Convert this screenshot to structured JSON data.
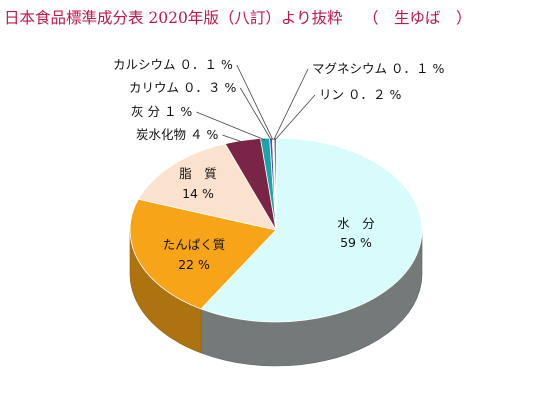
{
  "title": "日本食品標準成分表 2020年版（八訂）より抜粋　 （　生ゆば　）",
  "colors": {
    "title": "#c0184a",
    "water": "#d8fbfc",
    "protein": "#f7a418",
    "fat": "#fbe2cf",
    "carb": "#7a2546",
    "ash": "#1aa6a6",
    "k": "#4a4ac8",
    "ca": "#c8e0f0",
    "mg": "#5a2a8a",
    "p": "#1e1e60"
  },
  "chart_data": {
    "type": "pie",
    "title": "日本食品標準成分表 2020年版（八訂）より抜粋　 （　生ゆば　）",
    "slices": [
      {
        "key": "water",
        "name": "水　分",
        "value": 59,
        "label": "59 %"
      },
      {
        "key": "protein",
        "name": "たんぱく質",
        "value": 22,
        "label": "22 %"
      },
      {
        "key": "fat",
        "name": "脂　質",
        "value": 14,
        "label": "14 %"
      },
      {
        "key": "carb",
        "name": "炭水化物",
        "value": 4,
        "label": "炭水化物 ４ %"
      },
      {
        "key": "ash",
        "name": "灰　分",
        "value": 1,
        "label": "灰 分 １ %"
      },
      {
        "key": "k",
        "name": "カリウム",
        "value": 0.3,
        "label": "カリウム ０．３ %"
      },
      {
        "key": "ca",
        "name": "カルシウム",
        "value": 0.1,
        "label": "カルシウム ０．１ %"
      },
      {
        "key": "mg",
        "name": "マグネシウム",
        "value": 0.1,
        "label": "マグネシウム ０．１ %"
      },
      {
        "key": "p",
        "name": "リン",
        "value": 0.2,
        "label": "リン ０．２ %"
      }
    ]
  }
}
